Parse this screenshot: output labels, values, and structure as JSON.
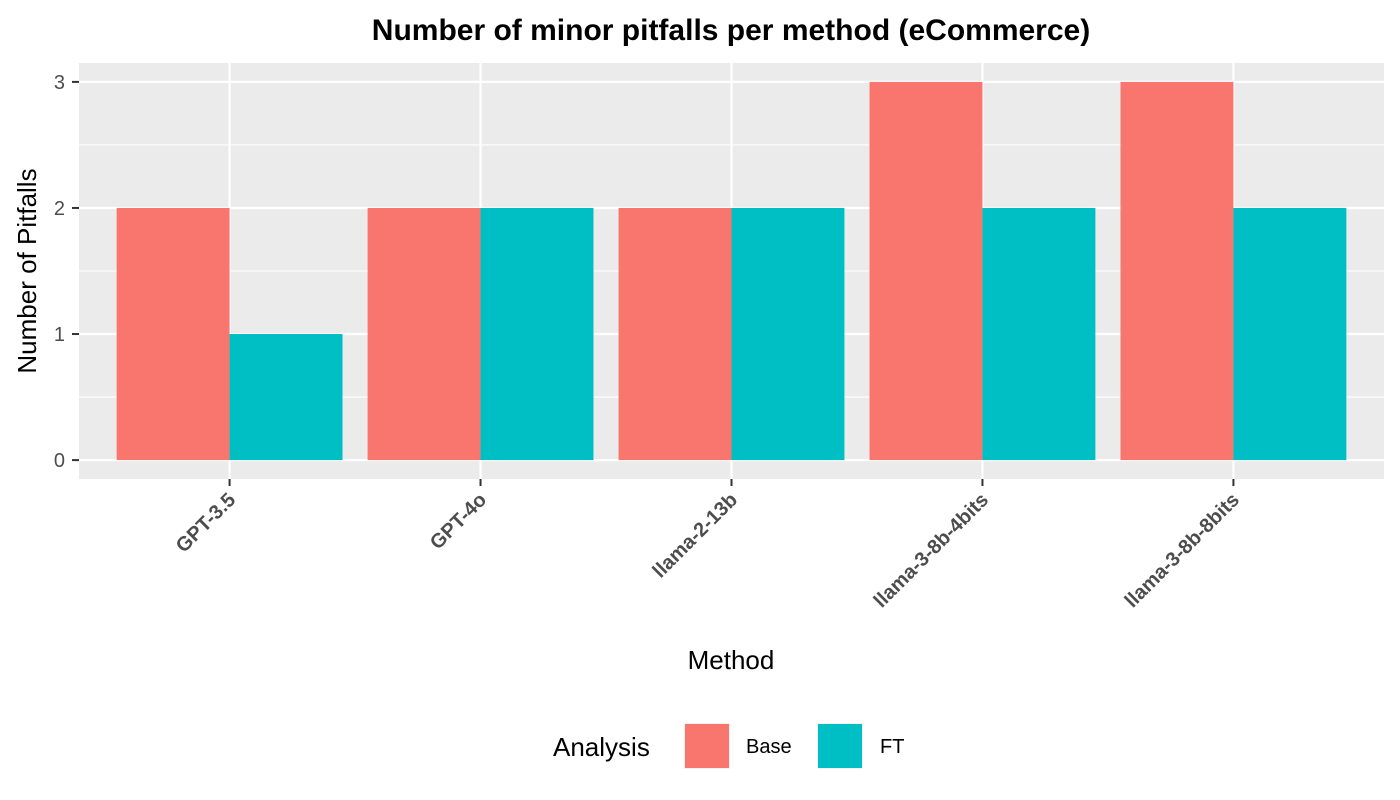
{
  "chart_data": {
    "type": "bar",
    "title": "Number of minor pitfalls per method (eCommerce)",
    "xlabel": "Method",
    "ylabel": "Number of Pitfalls",
    "categories": [
      "GPT-3.5",
      "GPT-4o",
      "llama-2-13b",
      "llama-3-8b-4bits",
      "llama-3-8b-8bits"
    ],
    "series": [
      {
        "name": "Base",
        "values": [
          2,
          2,
          2,
          3,
          3
        ],
        "color": "#F8766D"
      },
      {
        "name": "FT",
        "values": [
          1,
          2,
          2,
          2,
          2
        ],
        "color": "#00BFC4"
      }
    ],
    "yticks": [
      0,
      1,
      2,
      3
    ],
    "ylim": [
      -0.15,
      3.15
    ],
    "grid": true,
    "legend": {
      "title": "Analysis",
      "position": "bottom"
    },
    "panel_background": "#EBEBEB",
    "grid_color": "#FFFFFF"
  }
}
